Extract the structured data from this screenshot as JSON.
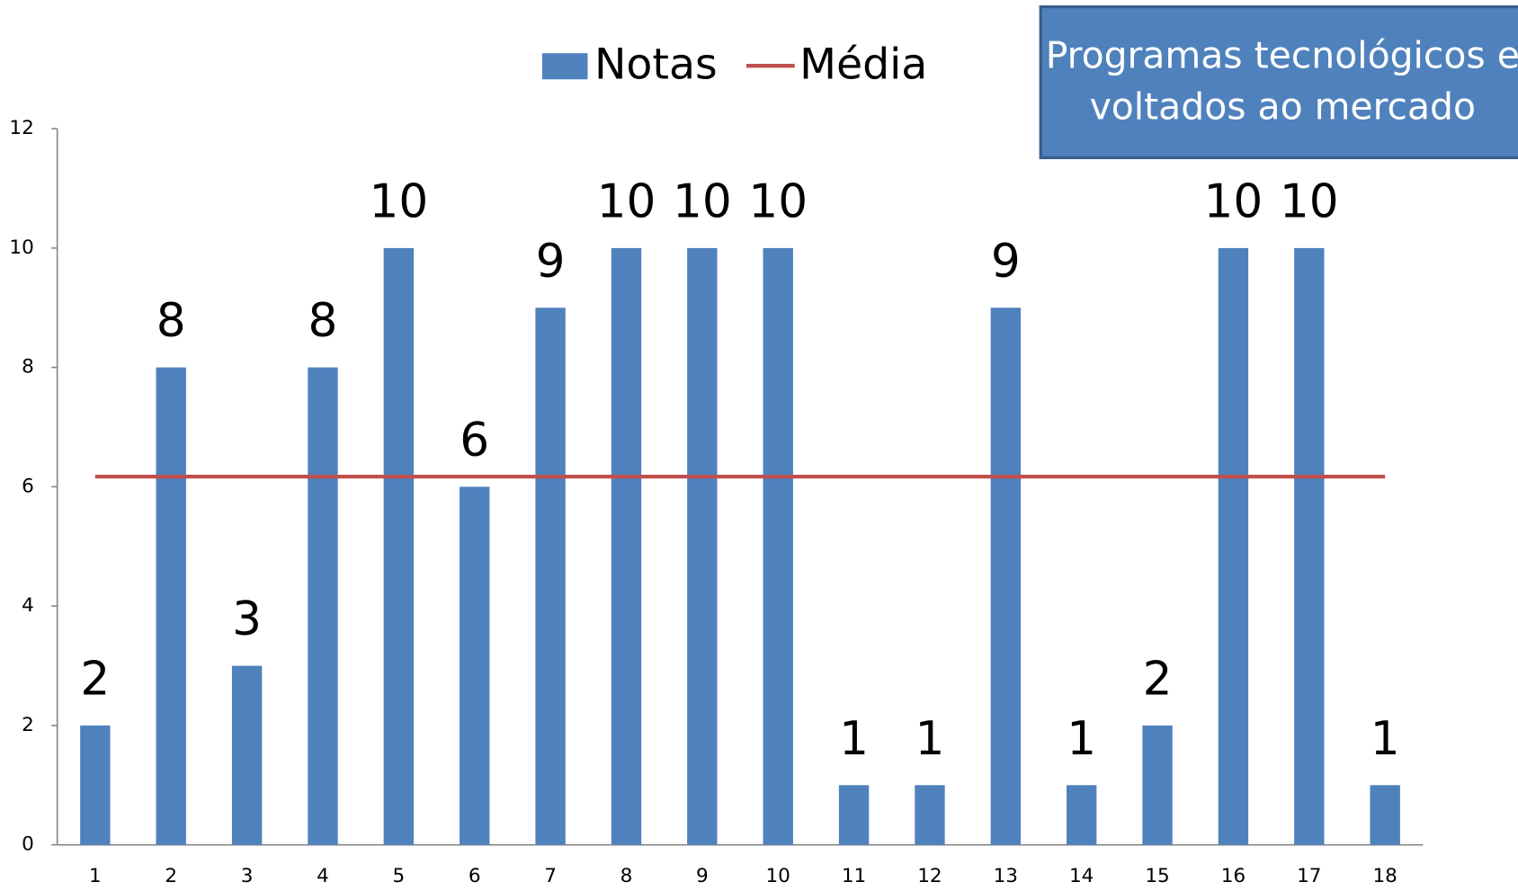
{
  "chart_data": {
    "type": "bar",
    "categories": [
      "1",
      "2",
      "3",
      "4",
      "5",
      "6",
      "7",
      "8",
      "9",
      "10",
      "11",
      "12",
      "13",
      "14",
      "15",
      "16",
      "17",
      "18"
    ],
    "series": [
      {
        "name": "Notas",
        "type": "bar",
        "color": "#4f81bd",
        "values": [
          2,
          8,
          3,
          8,
          10,
          6,
          9,
          10,
          10,
          10,
          1,
          1,
          9,
          1,
          2,
          10,
          10,
          1
        ]
      },
      {
        "name": "Média",
        "type": "line",
        "color": "#c0504d",
        "values": [
          6.17,
          6.17,
          6.17,
          6.17,
          6.17,
          6.17,
          6.17,
          6.17,
          6.17,
          6.17,
          6.17,
          6.17,
          6.17,
          6.17,
          6.17,
          6.17,
          6.17,
          6.17
        ]
      }
    ],
    "ylim": [
      0,
      12
    ],
    "yticks": [
      0,
      2,
      4,
      6,
      8,
      10,
      12
    ],
    "annotation": [
      "Programas tecnológicos e",
      "voltados ao mercado"
    ],
    "legend": "top",
    "grid": false
  }
}
